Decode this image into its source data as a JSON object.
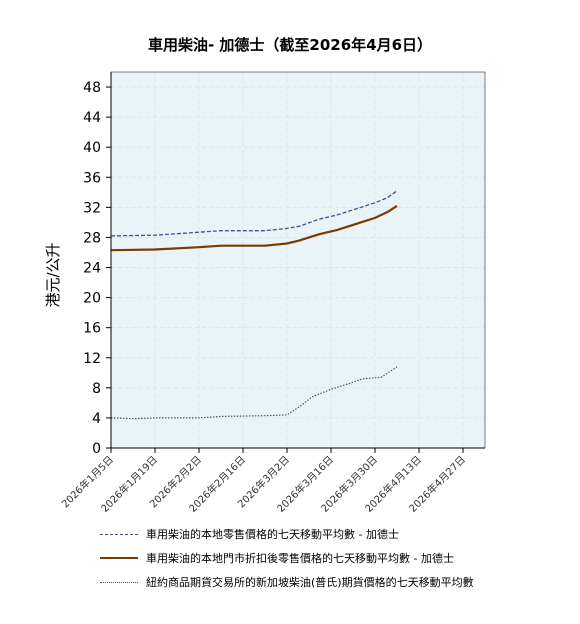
{
  "chart_data": {
    "type": "line",
    "title": "車用柴油- 加德士（截至2026年4月6日）",
    "ylabel": "港元/公升",
    "xlabel": "",
    "ylim": [
      0,
      50
    ],
    "yticks": [
      0,
      4,
      8,
      12,
      16,
      20,
      24,
      28,
      32,
      36,
      40,
      44,
      48
    ],
    "x_ticks": [
      "2026年1月5日",
      "2026年1月19日",
      "2026年2月2日",
      "2026年2月16日",
      "2026年3月2日",
      "2026年3月16日",
      "2026年3月30日",
      "2026年4月13日",
      "2026年4月27日"
    ],
    "x_range": [
      "2026-01-05",
      "2026-05-04"
    ],
    "grid": true,
    "legend_position": "bottom",
    "colors": {
      "plot_bg": "#eaf4f8",
      "grid": "#d6e6ee"
    },
    "series": [
      {
        "name": "車用柴油的本地零售價格的七天移動平均數   - 加德士",
        "color": "#4a4a9a",
        "style": "dashed",
        "points": [
          [
            "2026-01-05",
            28.2
          ],
          [
            "2026-01-19",
            28.3
          ],
          [
            "2026-02-02",
            28.7
          ],
          [
            "2026-02-09",
            28.9
          ],
          [
            "2026-02-23",
            28.9
          ],
          [
            "2026-03-02",
            29.2
          ],
          [
            "2026-03-06",
            29.5
          ],
          [
            "2026-03-12",
            30.4
          ],
          [
            "2026-03-18",
            31.0
          ],
          [
            "2026-03-24",
            31.8
          ],
          [
            "2026-03-30",
            32.6
          ],
          [
            "2026-04-03",
            33.3
          ],
          [
            "2026-04-06",
            34.2
          ]
        ]
      },
      {
        "name": "車用柴油的本地門市折扣後零售價格的七天移動平均數   - 加德士",
        "color": "#7a3b00",
        "style": "solid",
        "points": [
          [
            "2026-01-05",
            26.3
          ],
          [
            "2026-01-19",
            26.4
          ],
          [
            "2026-02-02",
            26.7
          ],
          [
            "2026-02-09",
            26.9
          ],
          [
            "2026-02-23",
            26.9
          ],
          [
            "2026-03-02",
            27.2
          ],
          [
            "2026-03-06",
            27.6
          ],
          [
            "2026-03-12",
            28.4
          ],
          [
            "2026-03-18",
            29.0
          ],
          [
            "2026-03-24",
            29.8
          ],
          [
            "2026-03-30",
            30.6
          ],
          [
            "2026-04-03",
            31.4
          ],
          [
            "2026-04-06",
            32.2
          ]
        ]
      },
      {
        "name": "紐約商品期貨交易所的新加坡柴油(普氏)期貨價格的七天移動平均數",
        "color": "#555555",
        "style": "dotted",
        "points": [
          [
            "2026-01-05",
            4.0
          ],
          [
            "2026-01-12",
            3.9
          ],
          [
            "2026-01-19",
            4.0
          ],
          [
            "2026-02-02",
            4.0
          ],
          [
            "2026-02-09",
            4.2
          ],
          [
            "2026-02-23",
            4.3
          ],
          [
            "2026-03-02",
            4.4
          ],
          [
            "2026-03-06",
            5.5
          ],
          [
            "2026-03-10",
            6.8
          ],
          [
            "2026-03-16",
            7.8
          ],
          [
            "2026-03-22",
            8.6
          ],
          [
            "2026-03-26",
            9.2
          ],
          [
            "2026-04-01",
            9.4
          ],
          [
            "2026-04-06",
            10.8
          ]
        ]
      }
    ]
  }
}
